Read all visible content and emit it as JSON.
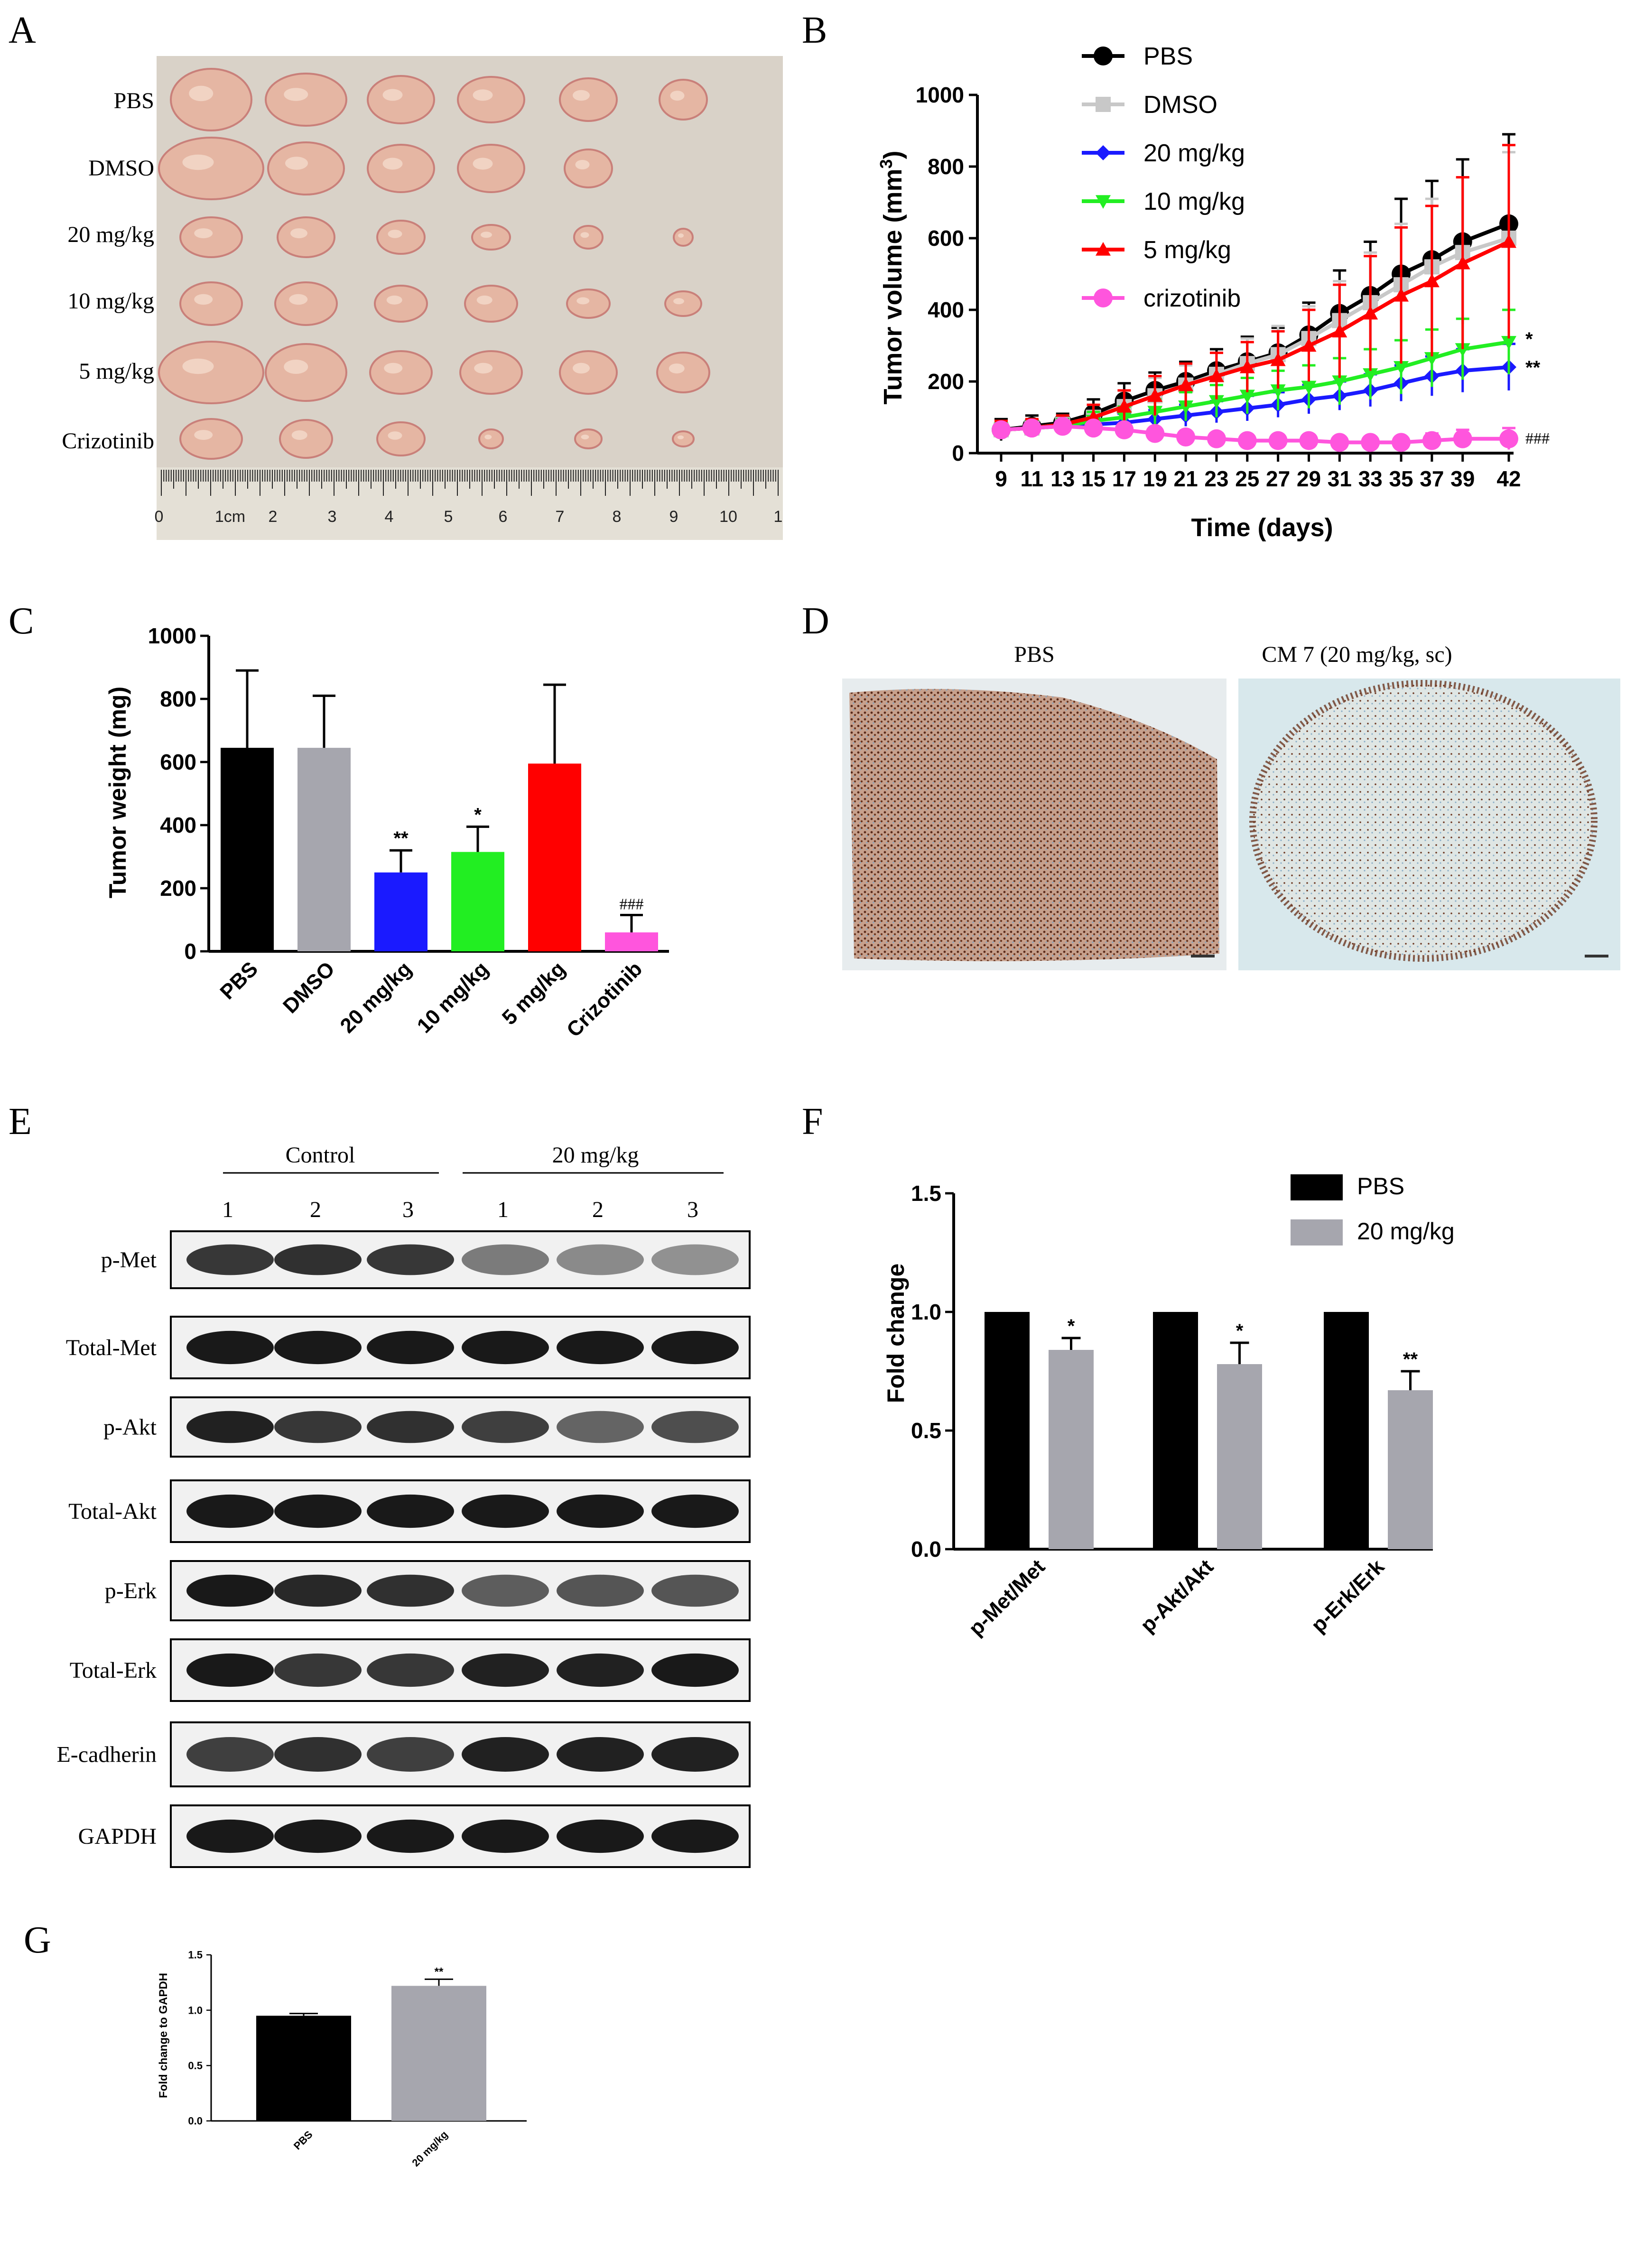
{
  "panels": {
    "A": {
      "letter": "A",
      "rows": [
        "PBS",
        "DMSO",
        "20 mg/kg",
        "10 mg/kg",
        "5 mg/kg",
        "Crizotinib"
      ],
      "ruler_labels": [
        "0",
        "1cm",
        "2",
        "3",
        "4",
        "5",
        "6",
        "7",
        "8",
        "9",
        "10",
        "1"
      ]
    },
    "D": {
      "letter": "D",
      "left_label": "PBS",
      "right_label": "CM 7 (20 mg/kg, sc)"
    },
    "E": {
      "letter": "E",
      "group_labels": [
        "Control",
        "20 mg/kg"
      ],
      "lane_numbers": [
        "1",
        "2",
        "3",
        "1",
        "2",
        "3"
      ],
      "blot_labels": [
        "p-Met",
        "Total-Met",
        "p-Akt",
        "Total-Akt",
        "p-Erk",
        "Total-Erk",
        "E-cadherin",
        "GAPDH"
      ]
    }
  },
  "colors": {
    "black": "#000000",
    "grey": "#a6a6ae",
    "blue": "#1a1aff",
    "green": "#22ee22",
    "red": "#ff0000",
    "magenta": "#ff55dd",
    "dmso_line": "#c8c8c8"
  },
  "chart_data": [
    {
      "panel": "B",
      "letter": "B",
      "type": "line",
      "xlabel": "Time (days)",
      "ylabel": "Tumor volume (mm",
      "ylabel_sup": "3",
      "ylabel_end": ")",
      "x": [
        9,
        11,
        13,
        15,
        17,
        19,
        21,
        23,
        25,
        27,
        29,
        31,
        33,
        35,
        37,
        39,
        42
      ],
      "xtick_labels": [
        "9",
        "11",
        "13",
        "15",
        "17",
        "19",
        "21",
        "23",
        "25",
        "27",
        "29",
        "31",
        "33",
        "35",
        "37",
        "39",
        "42"
      ],
      "ylim": [
        0,
        1000
      ],
      "yticks": [
        "0",
        "200",
        "400",
        "600",
        "800",
        "1000"
      ],
      "legend_position": "top",
      "series": [
        {
          "name": "PBS",
          "color": "#000000",
          "marker": "circle",
          "values": [
            65,
            75,
            85,
            110,
            145,
            175,
            200,
            230,
            255,
            280,
            330,
            390,
            440,
            500,
            540,
            590,
            640
          ],
          "errors": [
            30,
            30,
            25,
            40,
            50,
            50,
            55,
            60,
            70,
            70,
            90,
            120,
            150,
            210,
            220,
            230,
            250
          ]
        },
        {
          "name": "DMSO",
          "color": "#c8c8c8",
          "marker": "square",
          "values": [
            65,
            70,
            80,
            100,
            130,
            160,
            190,
            220,
            250,
            275,
            320,
            370,
            420,
            470,
            520,
            560,
            600
          ],
          "errors": [
            25,
            25,
            25,
            35,
            45,
            50,
            55,
            60,
            70,
            80,
            90,
            110,
            140,
            170,
            190,
            210,
            240
          ]
        },
        {
          "name": "20 mg/kg",
          "color": "#1a1aff",
          "marker": "diamond",
          "values": [
            65,
            70,
            75,
            80,
            85,
            95,
            105,
            115,
            125,
            135,
            150,
            160,
            175,
            195,
            215,
            230,
            240
          ],
          "errors": [
            20,
            20,
            20,
            20,
            25,
            25,
            30,
            30,
            35,
            35,
            40,
            40,
            45,
            50,
            55,
            60,
            65
          ]
        },
        {
          "name": "10 mg/kg",
          "color": "#22ee22",
          "marker": "triangle-down",
          "values": [
            65,
            70,
            75,
            90,
            100,
            115,
            130,
            145,
            160,
            175,
            185,
            200,
            220,
            240,
            265,
            290,
            310
          ],
          "errors": [
            20,
            20,
            20,
            25,
            30,
            35,
            40,
            45,
            50,
            55,
            60,
            65,
            70,
            75,
            80,
            85,
            90
          ]
        },
        {
          "name": "5 mg/kg",
          "color": "#ff0000",
          "marker": "triangle-up",
          "values": [
            65,
            70,
            80,
            100,
            130,
            160,
            190,
            215,
            240,
            260,
            300,
            340,
            390,
            440,
            480,
            530,
            590
          ],
          "errors": [
            25,
            25,
            25,
            35,
            45,
            55,
            60,
            65,
            70,
            80,
            100,
            130,
            160,
            190,
            210,
            240,
            270
          ]
        },
        {
          "name": "crizotinib",
          "color": "#ff55dd",
          "marker": "circle",
          "values": [
            65,
            70,
            75,
            70,
            65,
            55,
            45,
            40,
            35,
            35,
            35,
            30,
            30,
            30,
            35,
            40,
            40
          ],
          "errors": [
            15,
            15,
            15,
            15,
            15,
            15,
            15,
            15,
            15,
            15,
            15,
            15,
            15,
            15,
            20,
            25,
            30
          ]
        }
      ],
      "annotations": [
        "*",
        "**",
        "###"
      ]
    },
    {
      "panel": "C",
      "letter": "C",
      "type": "bar",
      "ylabel": "Tumor weight (mg)",
      "categories": [
        "PBS",
        "DMSO",
        "20 mg/kg",
        "10 mg/kg",
        "5 mg/kg",
        "Crizotinib"
      ],
      "values": [
        645,
        645,
        250,
        315,
        595,
        60
      ],
      "errors": [
        245,
        165,
        70,
        80,
        250,
        55
      ],
      "colors": [
        "#000000",
        "#a6a6ae",
        "#1a1aff",
        "#22ee22",
        "#ff0000",
        "#ff55dd"
      ],
      "annotations": [
        "",
        "",
        "**",
        "*",
        "",
        "###"
      ],
      "ylim": [
        0,
        1000
      ],
      "yticks": [
        "0",
        "200",
        "400",
        "600",
        "800",
        "1000"
      ]
    },
    {
      "panel": "F",
      "letter": "F",
      "type": "bar",
      "ylabel": "Fold change",
      "categories": [
        "p-Met/Met",
        "p-Akt/Akt",
        "p-Erk/Erk"
      ],
      "series": [
        {
          "name": "PBS",
          "color": "#000000",
          "values": [
            1.0,
            1.0,
            1.0
          ],
          "errors": [
            0,
            0,
            0
          ]
        },
        {
          "name": "20 mg/kg",
          "color": "#a6a6ae",
          "values": [
            0.84,
            0.78,
            0.67
          ],
          "errors": [
            0.05,
            0.09,
            0.08
          ]
        }
      ],
      "annotations": [
        "*",
        "*",
        "**"
      ],
      "ylim": [
        0,
        1.5
      ],
      "yticks": [
        "0.0",
        "0.5",
        "1.0",
        "1.5"
      ],
      "legend_position": "top-right"
    },
    {
      "panel": "G",
      "letter": "G",
      "type": "bar",
      "ylabel": "Fold change to GAPDH",
      "categories": [
        "PBS",
        "20 mg/kg"
      ],
      "values": [
        0.95,
        1.22
      ],
      "errors": [
        0.02,
        0.06
      ],
      "colors": [
        "#000000",
        "#a6a6ae"
      ],
      "annotations": [
        "",
        "**"
      ],
      "ylim": [
        0,
        1.5
      ],
      "yticks": [
        "0.0",
        "0.5",
        "1.0",
        "1.5"
      ]
    }
  ]
}
